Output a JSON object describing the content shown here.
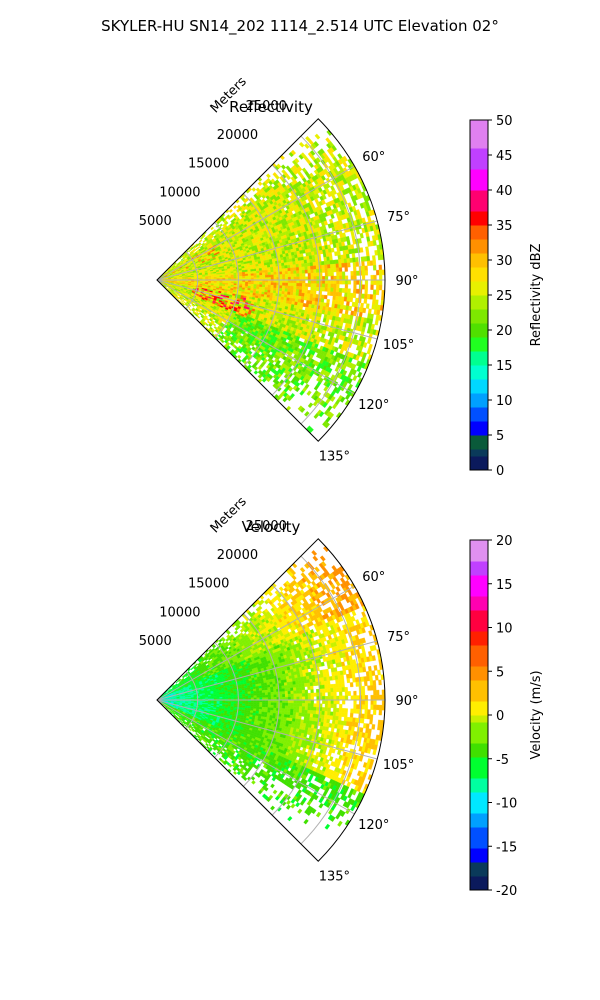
{
  "title": "SKYLER-HU  SN14_202  1114_2.514 UTC Elevation 02°",
  "chart_data": [
    {
      "type": "heatmap",
      "title": "Reflectivity",
      "projection": "polar-sector",
      "range_label": "Meters",
      "range_ticks": [
        5000,
        10000,
        15000,
        20000,
        25000
      ],
      "range_max": 28000,
      "azimuth_ticks": [
        "60°",
        "75°",
        "90°",
        "105°",
        "120°",
        "135°"
      ],
      "azimuth_values": [
        60,
        75,
        90,
        105,
        120,
        135
      ],
      "azimuth_range": [
        45,
        135
      ],
      "grid": true,
      "colorbar": {
        "label": "Reflectivity dBZ",
        "ticks": [
          "0",
          "5",
          "10",
          "15",
          "20",
          "25",
          "30",
          "35",
          "40",
          "45",
          "50"
        ],
        "range": [
          0,
          50
        ]
      },
      "field_description": "Mostly 20-30 dBZ echoes (yellow-green), scattered cores 30-38 dBZ near 95-110° at 5000-12000 m"
    },
    {
      "type": "heatmap",
      "title": "Velocity",
      "projection": "polar-sector",
      "range_label": "Meters",
      "range_ticks": [
        5000,
        10000,
        15000,
        20000,
        25000
      ],
      "range_max": 28000,
      "azimuth_ticks": [
        "60°",
        "75°",
        "90°",
        "105°",
        "120°",
        "135°"
      ],
      "azimuth_values": [
        60,
        75,
        90,
        105,
        120,
        135
      ],
      "azimuth_range": [
        45,
        135
      ],
      "grid": true,
      "colorbar": {
        "label": "Velocity (m/s)",
        "ticks": [
          "20",
          "15",
          "10",
          "5",
          "0",
          "-5",
          "-10",
          "-15",
          "-20"
        ],
        "range": [
          -20,
          20
        ]
      },
      "field_description": "Inbound -5 to -10 m/s near radar, transitioning to ~0 m/s beyond 15000 m"
    }
  ]
}
